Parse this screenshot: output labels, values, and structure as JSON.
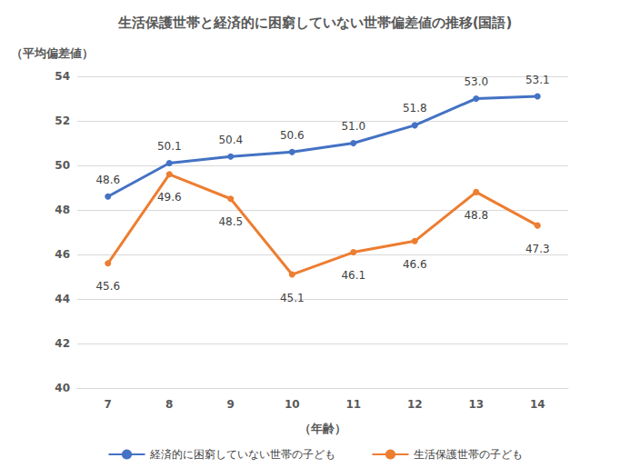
{
  "chart_data": {
    "type": "line",
    "title": "生活保護世帯と経済的に困窮していない世帯偏差値の推移(国語)",
    "y_label": "（平均偏差値）",
    "x_label": "（年齢）",
    "categories": [
      "7",
      "8",
      "9",
      "10",
      "11",
      "12",
      "13",
      "14"
    ],
    "series": [
      {
        "name": "経済的に困窮していない世帯の子ども",
        "color": "#4472c4",
        "marker": "circle",
        "values": [
          48.6,
          50.1,
          50.4,
          50.6,
          51.0,
          51.8,
          53.0,
          53.1
        ],
        "value_labels": [
          "48.6",
          "50.1",
          "50.4",
          "50.6",
          "51.0",
          "51.8",
          "53.0",
          "53.1"
        ]
      },
      {
        "name": "生活保護世帯の子ども",
        "color": "#ed7d31",
        "marker": "circle",
        "values": [
          45.6,
          49.6,
          48.5,
          45.1,
          46.1,
          46.6,
          48.8,
          47.3
        ]
      }
    ],
    "ylim": [
      40,
      54
    ],
    "yticks": [
      40,
      42,
      44,
      46,
      48,
      50,
      52,
      54
    ],
    "grid": true,
    "data_labels": true,
    "legend": "bottom"
  }
}
